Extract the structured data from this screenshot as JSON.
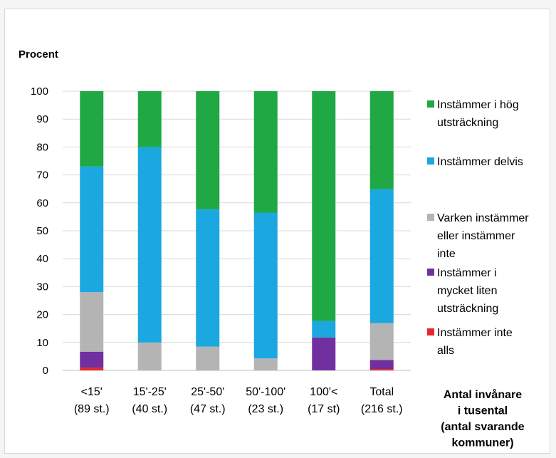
{
  "chart_data": {
    "type": "bar",
    "stacked": true,
    "ylabel": "Procent",
    "xlabel_lines": [
      "Antal invånare",
      "i tusental",
      "(antal svarande",
      "kommuner)"
    ],
    "ylim": [
      0,
      100
    ],
    "yticks": [
      0,
      10,
      20,
      30,
      40,
      50,
      60,
      70,
      80,
      90,
      100
    ],
    "grid": true,
    "legend_position": "right",
    "categories": [
      [
        "<15'",
        "(89 st.)"
      ],
      [
        "15'-25'",
        "(40 st.)"
      ],
      [
        "25'-50'",
        "(47 st.)"
      ],
      [
        "50'-100'",
        "(23 st.)"
      ],
      [
        "100'<",
        "(17 st)"
      ],
      [
        "Total",
        "(216 st.)"
      ]
    ],
    "series": [
      {
        "name": "Instämmer inte alls",
        "legend_lines": [
          "Instämmer inte",
          "alls"
        ],
        "color": "#e8272a",
        "values": [
          1,
          0,
          0,
          0,
          0,
          0.5
        ]
      },
      {
        "name": "Instämmer i mycket liten utsträckning",
        "legend_lines": [
          "Instämmer i",
          "mycket liten",
          "utsträckning"
        ],
        "color": "#7030a0",
        "values": [
          5.7,
          0,
          0,
          0,
          11.8,
          3.2
        ]
      },
      {
        "name": "Varken instämmer eller instämmer inte",
        "legend_lines": [
          "Varken instämmer",
          "eller instämmer",
          "inte"
        ],
        "color": "#b4b4b4",
        "values": [
          21.3,
          10,
          8.5,
          4.3,
          0,
          13.2
        ]
      },
      {
        "name": "Instämmer delvis",
        "legend_lines": [
          "Instämmer delvis"
        ],
        "color": "#1ba7e0",
        "values": [
          45,
          70,
          49.2,
          52.2,
          5.9,
          48
        ]
      },
      {
        "name": "Instämmer i hög utsträckning",
        "legend_lines": [
          "Instämmer i hög",
          "utsträckning"
        ],
        "color": "#1fa843",
        "values": [
          27,
          20,
          42.3,
          43.5,
          82.3,
          35.1
        ]
      }
    ]
  }
}
